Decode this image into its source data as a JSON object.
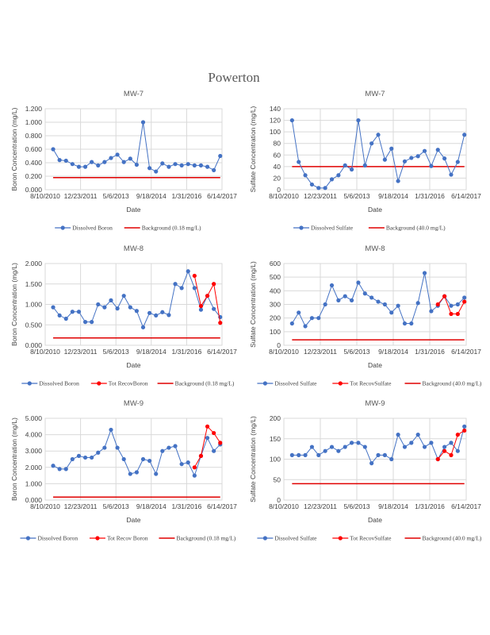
{
  "page": {
    "title": "Powerton"
  },
  "colors": {
    "dissolved": "#4472C4",
    "total": "#FF0000",
    "background": "#E00000",
    "grid": "#D9D9D9"
  },
  "chart_data": [
    {
      "type": "line",
      "title": "MW-7",
      "xlabel": "Date",
      "ylabel": "Boron  Concentration (mg/L)",
      "yticks": [
        "0.000",
        "0.200",
        "0.400",
        "0.600",
        "0.800",
        "1.000",
        "1.200"
      ],
      "ylim": [
        0,
        1.2
      ],
      "xticks": [
        "8/10/2010",
        "12/23/2011",
        "5/6/2013",
        "9/18/2014",
        "1/31/2016",
        "6/14/2017"
      ],
      "series": [
        {
          "name": "Dissolved Boron",
          "kind": "dissolved",
          "start_index": 0,
          "values": [
            0.6,
            0.44,
            0.43,
            0.38,
            0.34,
            0.34,
            0.41,
            0.36,
            0.41,
            0.47,
            0.52,
            0.41,
            0.46,
            0.37,
            1.0,
            0.32,
            0.27,
            0.39,
            0.34,
            0.38,
            0.36,
            0.38,
            0.36,
            0.36,
            0.34,
            0.29,
            0.5
          ]
        }
      ],
      "background": {
        "name": "Background  (0.18 mg/L)",
        "value": 0.18
      },
      "legend": [
        "Dissolved Boron",
        "Background  (0.18 mg/L)"
      ]
    },
    {
      "type": "line",
      "title": "MW-7",
      "xlabel": "Date",
      "ylabel": "Sulfate  Concentration (mg/L)",
      "yticks": [
        "0",
        "20",
        "40",
        "60",
        "80",
        "100",
        "120",
        "140"
      ],
      "ylim": [
        0,
        140
      ],
      "xticks": [
        "8/10/2010",
        "12/23/2011",
        "5/6/2013",
        "9/18/2014",
        "1/31/2016",
        "6/14/2017"
      ],
      "series": [
        {
          "name": "Dissolved Sulfate",
          "kind": "dissolved",
          "start_index": 0,
          "values": [
            120,
            48,
            25,
            9,
            3,
            3,
            18,
            25,
            42,
            35,
            120,
            42,
            80,
            95,
            52,
            71,
            15,
            49,
            55,
            58,
            67,
            41,
            69,
            54,
            26,
            48,
            95
          ]
        }
      ],
      "background": {
        "name": "Background  (40.0 mg/L)",
        "value": 40
      },
      "legend": [
        "Dissolved Sulfate",
        "Background  (40.0 mg/L)"
      ]
    },
    {
      "type": "line",
      "title": "MW-8",
      "xlabel": "Date",
      "ylabel": "Boron  Concentration (mg/L)",
      "yticks": [
        "0.000",
        "0.500",
        "1.000",
        "1.500",
        "2.000"
      ],
      "ylim": [
        0,
        2.0
      ],
      "xticks": [
        "8/10/2010",
        "12/23/2011",
        "5/6/2013",
        "9/18/2014",
        "1/31/2016",
        "6/14/2017"
      ],
      "series": [
        {
          "name": "Dissolved Boron",
          "kind": "dissolved",
          "start_index": 0,
          "values": [
            0.93,
            0.73,
            0.65,
            0.82,
            0.82,
            0.57,
            0.57,
            1.0,
            0.93,
            1.1,
            0.9,
            1.21,
            0.93,
            0.84,
            0.44,
            0.79,
            0.73,
            0.81,
            0.74,
            1.5,
            1.4,
            1.81,
            1.4,
            0.87,
            1.21,
            0.89,
            0.69
          ]
        },
        {
          "name": "Tot RecovBoron",
          "kind": "total",
          "start_index": 22,
          "values": [
            1.7,
            0.96,
            1.21,
            1.5,
            0.55
          ]
        }
      ],
      "background": {
        "name": "Background  (0.18 mg/L)",
        "value": 0.18
      },
      "legend": [
        "Dissolved Boron",
        "Tot RecovBoron",
        "Background  (0.18 mg/L)"
      ]
    },
    {
      "type": "line",
      "title": "MW-8",
      "xlabel": "Date",
      "ylabel": "Sulfate  Concentration (mg/L)",
      "yticks": [
        "0",
        "100",
        "200",
        "300",
        "400",
        "500",
        "600"
      ],
      "ylim": [
        0,
        600
      ],
      "xticks": [
        "8/10/2010",
        "12/23/2011",
        "5/6/2013",
        "9/18/2014",
        "1/31/2016",
        "6/14/2017"
      ],
      "series": [
        {
          "name": "Dissolved Sulfate",
          "kind": "dissolved",
          "start_index": 0,
          "values": [
            160,
            240,
            140,
            200,
            200,
            300,
            440,
            330,
            360,
            330,
            460,
            380,
            350,
            320,
            300,
            240,
            290,
            160,
            160,
            310,
            530,
            250,
            290,
            360,
            290,
            300,
            350
          ]
        },
        {
          "name": "Tot RecovSulfate",
          "kind": "total",
          "start_index": 22,
          "values": [
            300,
            360,
            230,
            230,
            320
          ]
        }
      ],
      "background": {
        "name": "Background  (40.0 mg/L)",
        "value": 40
      },
      "legend": [
        "Dissolved Sulfate",
        "Tot RecovSulfate",
        "Background  (40.0 mg/L)"
      ]
    },
    {
      "type": "line",
      "title": "MW-9",
      "xlabel": "Date",
      "ylabel": "Boron  Concentration (mg/L)",
      "yticks": [
        "0.000",
        "1.000",
        "2.000",
        "3.000",
        "4.000",
        "5.000"
      ],
      "ylim": [
        0,
        5.0
      ],
      "xticks": [
        "8/10/2010",
        "12/23/2011",
        "5/6/2013",
        "9/18/2014",
        "1/31/2016",
        "6/14/2017"
      ],
      "series": [
        {
          "name": "Dissolved Boron",
          "kind": "dissolved",
          "start_index": 0,
          "values": [
            2.1,
            1.9,
            1.9,
            2.5,
            2.7,
            2.6,
            2.6,
            2.9,
            3.2,
            4.3,
            3.2,
            2.5,
            1.6,
            1.7,
            2.5,
            2.4,
            1.6,
            3.0,
            3.2,
            3.3,
            2.2,
            2.3,
            1.5,
            2.7,
            3.8,
            3.0,
            3.4
          ]
        },
        {
          "name": "Tot Recov Boron",
          "kind": "total",
          "start_index": 22,
          "values": [
            2.0,
            2.7,
            4.5,
            4.1,
            3.5
          ]
        }
      ],
      "background": {
        "name": "Background  (0.18 mg/L)",
        "value": 0.18
      },
      "legend": [
        "Dissolved Boron",
        "Tot Recov Boron",
        "Background  (0.18 mg/L)"
      ]
    },
    {
      "type": "line",
      "title": "MW-9",
      "xlabel": "Date",
      "ylabel": "Sulfate  Concentration (mg/L)",
      "yticks": [
        "0",
        "50",
        "100",
        "150",
        "200"
      ],
      "ylim": [
        0,
        200
      ],
      "xticks": [
        "8/10/2010",
        "12/23/2011",
        "5/6/2013",
        "9/18/2014",
        "1/31/2016",
        "6/14/2017"
      ],
      "series": [
        {
          "name": "Dissolved Sulfate",
          "kind": "dissolved",
          "start_index": 0,
          "values": [
            110,
            110,
            110,
            130,
            110,
            120,
            130,
            120,
            130,
            140,
            140,
            130,
            90,
            110,
            110,
            100,
            160,
            130,
            140,
            160,
            130,
            140,
            100,
            130,
            140,
            120,
            180
          ]
        },
        {
          "name": "Tot RecovSulfate",
          "kind": "total",
          "start_index": 22,
          "values": [
            100,
            120,
            110,
            160,
            170
          ]
        }
      ],
      "background": {
        "name": "Background  (40.0 mg/L)",
        "value": 40
      },
      "legend": [
        "Dissolved Sulfate",
        "Tot RecovSulfate",
        "Background  (40.0 mg/L)"
      ]
    }
  ]
}
